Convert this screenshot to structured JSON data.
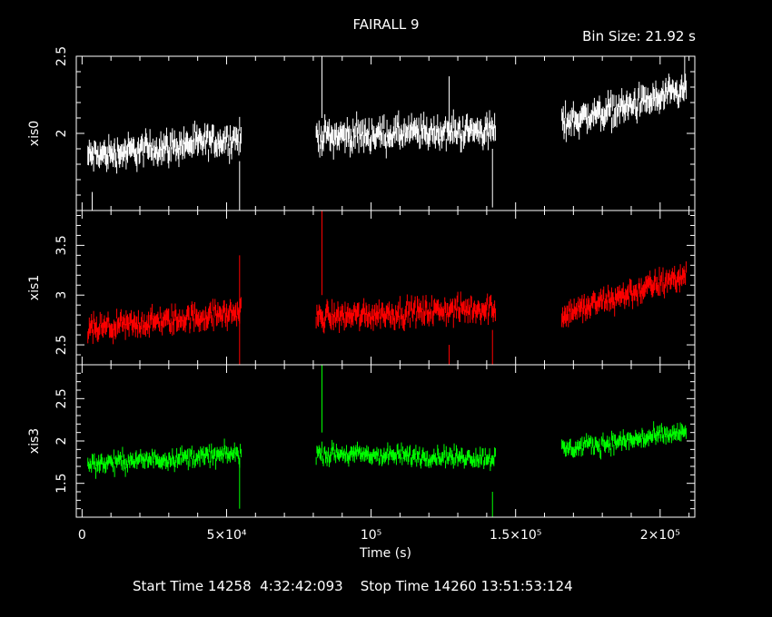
{
  "title": "FAIRALL 9",
  "bin_size_label": "Bin Size: 21.92 s",
  "footer": {
    "start_label": "Start Time",
    "start_value": "14258  4:32:42:093",
    "stop_label": "Stop Time",
    "stop_value": "14260 13:51:53:124"
  },
  "chart_data": [
    {
      "type": "scatter",
      "ylabel": "xis0",
      "color": "#ffffff",
      "xlim": [
        -2000,
        212000
      ],
      "ylim": [
        1.5,
        2.5
      ],
      "yticks": [
        {
          "v": 2,
          "label": "2"
        },
        {
          "v": 2.5,
          "label": "2.5"
        }
      ],
      "segments": [
        {
          "x0": 2000,
          "x1": 55000,
          "y0": 1.85,
          "y1": 1.97
        },
        {
          "x0": 81000,
          "x1": 143000,
          "y0": 1.98,
          "y1": 2.02
        },
        {
          "x0": 166000,
          "x1": 209000,
          "y0": 2.07,
          "y1": 2.27
        }
      ],
      "noise": 0.07,
      "err": 0.1,
      "spikes": [
        {
          "x": 3500,
          "ylo": 1.5,
          "yhi": 1.62
        },
        {
          "x": 54500,
          "ylo": 1.5,
          "yhi": 1.82
        },
        {
          "x": 83000,
          "ylo": 2.1,
          "yhi": 2.5
        },
        {
          "x": 127000,
          "ylo": 2.1,
          "yhi": 2.37
        },
        {
          "x": 142000,
          "ylo": 1.52,
          "yhi": 1.9
        },
        {
          "x": 208500,
          "ylo": 2.3,
          "yhi": 2.5
        }
      ]
    },
    {
      "type": "scatter",
      "ylabel": "xis1",
      "color": "#ff0000",
      "xlim": [
        -2000,
        212000
      ],
      "ylim": [
        2.3,
        3.85
      ],
      "yticks": [
        {
          "v": 2.5,
          "label": "2.5"
        },
        {
          "v": 3,
          "label": "3"
        },
        {
          "v": 3.5,
          "label": "3.5"
        }
      ],
      "segments": [
        {
          "x0": 2000,
          "x1": 55000,
          "y0": 2.65,
          "y1": 2.83
        },
        {
          "x0": 81000,
          "x1": 143000,
          "y0": 2.78,
          "y1": 2.87
        },
        {
          "x0": 166000,
          "x1": 209000,
          "y0": 2.8,
          "y1": 3.2
        }
      ],
      "noise": 0.09,
      "err": 0.13,
      "spikes": [
        {
          "x": 54500,
          "ylo": 2.3,
          "yhi": 3.4
        },
        {
          "x": 83000,
          "ylo": 3.0,
          "yhi": 3.85
        },
        {
          "x": 127000,
          "ylo": 2.3,
          "yhi": 2.5
        },
        {
          "x": 142000,
          "ylo": 2.3,
          "yhi": 2.65
        }
      ]
    },
    {
      "type": "scatter",
      "ylabel": "xis3",
      "color": "#00ff00",
      "xlim": [
        -2000,
        212000
      ],
      "ylim": [
        1.1,
        2.9
      ],
      "yticks": [
        {
          "v": 1.5,
          "label": "1.5"
        },
        {
          "v": 2,
          "label": "2"
        },
        {
          "v": 2.5,
          "label": "2.5"
        }
      ],
      "segments": [
        {
          "x0": 2000,
          "x1": 55000,
          "y0": 1.73,
          "y1": 1.85
        },
        {
          "x0": 81000,
          "x1": 143000,
          "y0": 1.85,
          "y1": 1.8
        },
        {
          "x0": 166000,
          "x1": 209000,
          "y0": 1.9,
          "y1": 2.1
        }
      ],
      "noise": 0.08,
      "err": 0.11,
      "spikes": [
        {
          "x": 54500,
          "ylo": 1.2,
          "yhi": 1.8
        },
        {
          "x": 83000,
          "ylo": 2.1,
          "yhi": 2.9
        },
        {
          "x": 142000,
          "ylo": 1.1,
          "yhi": 1.4
        }
      ]
    }
  ],
  "x_axis": {
    "label": "Time (s)",
    "ticks": [
      {
        "v": 0,
        "label": "0"
      },
      {
        "v": 50000,
        "label": "5×10⁴"
      },
      {
        "v": 100000,
        "label": "10⁵"
      },
      {
        "v": 150000,
        "label": "1.5×10⁵"
      },
      {
        "v": 200000,
        "label": "2×10⁵"
      }
    ]
  }
}
